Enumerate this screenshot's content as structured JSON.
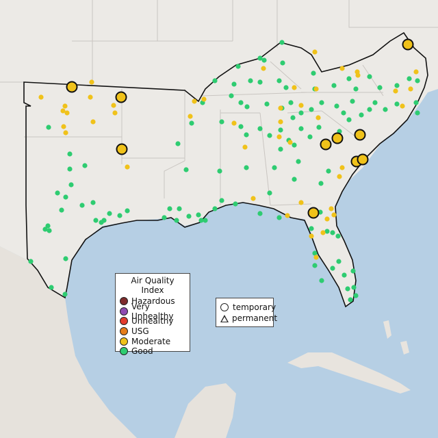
{
  "legend": {
    "title": "Air Quality Index",
    "categories": [
      {
        "label": "Hazardous",
        "color": "#7e2c2c"
      },
      {
        "label": "Very Unhealthy",
        "color": "#8e4bb2"
      },
      {
        "label": "Unhealthy",
        "color": "#e23b2e"
      },
      {
        "label": "USG",
        "color": "#e67d1a"
      },
      {
        "label": "Moderate",
        "color": "#f0c21a"
      },
      {
        "label": "Good",
        "color": "#2ecc71"
      }
    ]
  },
  "type_legend": {
    "items": [
      {
        "label": "temporary",
        "shape": "circle"
      },
      {
        "label": "permanent",
        "shape": "triangle"
      }
    ]
  },
  "map_colors": {
    "water": "#b6cfe4",
    "land": "#eceae6",
    "state_border": "#c9c5c1",
    "region_outline": "#111111",
    "mexico_land": "#e6e2dc",
    "cuba_land": "#e8e4de"
  }
}
